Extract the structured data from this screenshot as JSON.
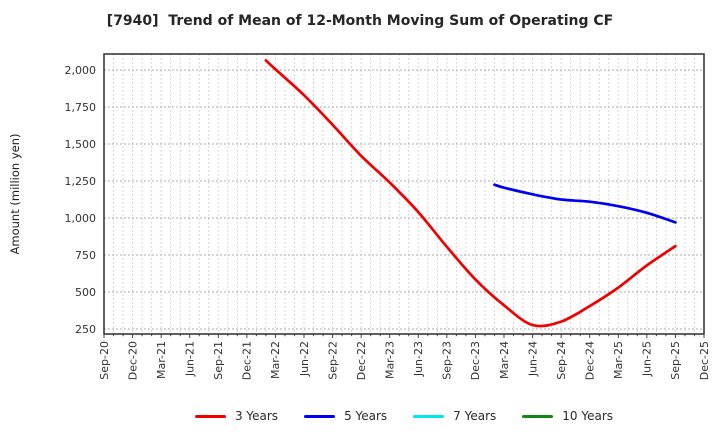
{
  "chart_data": {
    "type": "line",
    "title": "[7940]  Trend of Mean of 12-Month Moving Sum of Operating CF",
    "xlabel": "",
    "ylabel": "Amount (million yen)",
    "y_axis": {
      "ticks": [
        250,
        500,
        750,
        1000,
        1250,
        1500,
        1750,
        2000
      ],
      "ylim": [
        215,
        2110
      ],
      "tick_format": "thousands-comma"
    },
    "x_axis": {
      "start": "Sep-20",
      "end": "Dec-25",
      "months_total": 63,
      "tick_labels": [
        "Sep-20",
        "Dec-20",
        "Mar-21",
        "Jun-21",
        "Sep-21",
        "Dec-21",
        "Mar-22",
        "Jun-22",
        "Sep-22",
        "Dec-22",
        "Mar-23",
        "Jun-23",
        "Sep-23",
        "Dec-23",
        "Mar-24",
        "Jun-24",
        "Sep-24",
        "Dec-24",
        "Mar-25",
        "Jun-25",
        "Sep-25",
        "Dec-25"
      ],
      "tick_rotation_deg": 90
    },
    "grid": true,
    "legend": {
      "position": "bottom",
      "entries": [
        {
          "label": "3 Years",
          "color": "#f10000"
        },
        {
          "label": "5 Years",
          "color": "#0000f1"
        },
        {
          "label": "7 Years",
          "color": "#00e5ee"
        },
        {
          "label": "10 Years",
          "color": "#128912"
        }
      ]
    },
    "series": [
      {
        "name": "3 Years",
        "color": "#f10000",
        "points": [
          [
            "Feb-22",
            2065
          ],
          [
            "Mar-22",
            2005
          ],
          [
            "Jun-22",
            1830
          ],
          [
            "Sep-22",
            1630
          ],
          [
            "Dec-22",
            1420
          ],
          [
            "Mar-23",
            1240
          ],
          [
            "Jun-23",
            1040
          ],
          [
            "Sep-23",
            805
          ],
          [
            "Dec-23",
            585
          ],
          [
            "Mar-24",
            410
          ],
          [
            "Jun-24",
            277
          ],
          [
            "Sep-24",
            300
          ],
          [
            "Dec-24",
            405
          ],
          [
            "Mar-25",
            530
          ],
          [
            "Jun-25",
            680
          ],
          [
            "Sep-25",
            810
          ]
        ]
      },
      {
        "name": "5 Years",
        "color": "#0000f1",
        "points": [
          [
            "Feb-24",
            1225
          ],
          [
            "Mar-24",
            1205
          ],
          [
            "Jun-24",
            1160
          ],
          [
            "Sep-24",
            1125
          ],
          [
            "Dec-24",
            1110
          ],
          [
            "Mar-25",
            1080
          ],
          [
            "Jun-25",
            1035
          ],
          [
            "Sep-25",
            970
          ]
        ]
      },
      {
        "name": "7 Years",
        "color": "#00e5ee",
        "points": []
      },
      {
        "name": "10 Years",
        "color": "#128912",
        "points": []
      }
    ]
  }
}
